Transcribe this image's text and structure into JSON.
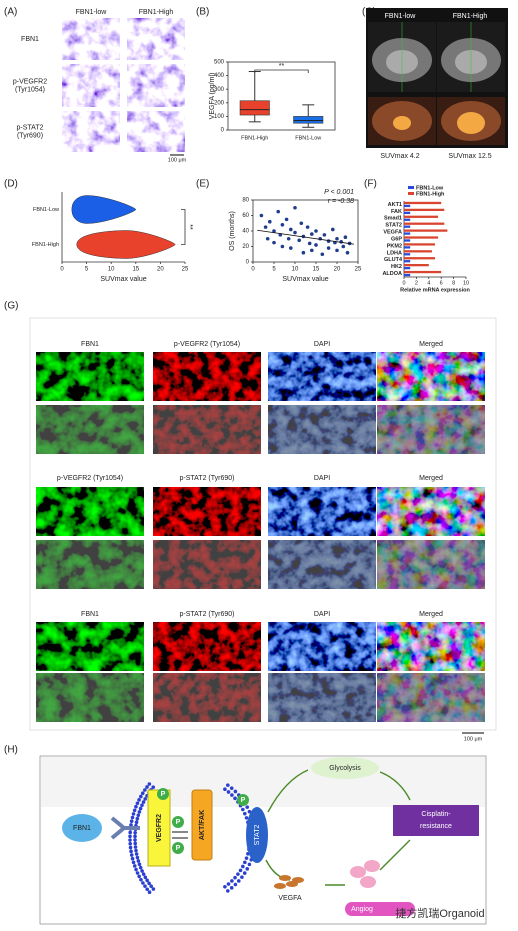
{
  "figure": {
    "panel_labels": [
      "(A)",
      "(B)",
      "(C)",
      "(D)",
      "(E)",
      "(F)",
      "(G)",
      "(H)"
    ],
    "A": {
      "columns": [
        "FBN1-low",
        "FBN1-High"
      ],
      "rows": [
        [
          "FBN1"
        ],
        [
          "p-VEGFR2",
          "(Tyr1054)"
        ],
        [
          "p-STAT2",
          "(Tyr690)"
        ]
      ],
      "scale": "100 μm"
    },
    "C": {
      "columns": [
        "FBN1-low",
        "FBN1-High"
      ],
      "captions": [
        "SUVmax 4.2",
        "SUVmax 12.5"
      ]
    },
    "G": {
      "groups": [
        [
          "FBN1",
          "p-VEGFR2 (Tyr1054)",
          "DAPI",
          "Merged"
        ],
        [
          "p-VEGFR2 (Tyr1054)",
          "p-STAT2 (Tyr690)",
          "DAPI",
          "Merged"
        ],
        [
          "FBN1",
          "p-STAT2 (Tyr690)",
          "DAPI",
          "Merged"
        ]
      ],
      "scale": "100 μm"
    },
    "H": {
      "fbn1": "FBN1",
      "vegfr2": "VEGFR2",
      "p": "P",
      "akt": "AKT/FAK",
      "stat2": "STAT2",
      "glycolysis": "Glycolysis",
      "cisplatin": [
        "Cisplatin-",
        "resistance"
      ],
      "vegfa": "VEGFA",
      "angio": "Angiog"
    },
    "watermark": "捷方凯瑞Organoid"
  },
  "chart_data": [
    {
      "type": "box",
      "y_label": "VEGFA (pg/ml)",
      "categories": [
        "FBN1-High",
        "FBN1-Low"
      ],
      "min": [
        60,
        20
      ],
      "q1": [
        110,
        50
      ],
      "median": [
        150,
        70
      ],
      "q3": [
        215,
        100
      ],
      "max": [
        430,
        185
      ],
      "colors": [
        "#e8412c",
        "#1a6ee6"
      ],
      "ylim": [
        0,
        500
      ],
      "yticks": [
        0,
        100,
        200,
        300,
        400,
        500
      ],
      "annotation": "**"
    },
    {
      "type": "violin",
      "x_label": "SUVmax value",
      "categories": [
        "FBN1-Low",
        "FBN1-High"
      ],
      "min": [
        2,
        3
      ],
      "peak": [
        5,
        13
      ],
      "max": [
        15,
        23
      ],
      "colors": [
        "#1a5fe6",
        "#e8412c"
      ],
      "xlim": [
        0,
        25
      ],
      "xticks": [
        0,
        5,
        10,
        15,
        20,
        25
      ],
      "annotation": "**"
    },
    {
      "type": "scatter",
      "x_label": "SUVmax value",
      "y_label": "OS (months)",
      "annotations": [
        "P < 0.001",
        "r = -0.38"
      ],
      "x": [
        2,
        3,
        3.5,
        4,
        5,
        5,
        6,
        6.5,
        7,
        7,
        8,
        8.5,
        9,
        9,
        10,
        10,
        11,
        11.5,
        12,
        12,
        13,
        13.5,
        14,
        14,
        15,
        15,
        16,
        16.5,
        17,
        18,
        18,
        19,
        19.5,
        20,
        20,
        21,
        21.5,
        22,
        22.5,
        23
      ],
      "y": [
        60,
        45,
        30,
        52,
        40,
        25,
        65,
        35,
        48,
        20,
        55,
        30,
        42,
        18,
        70,
        38,
        28,
        50,
        33,
        12,
        45,
        24,
        36,
        15,
        40,
        22,
        30,
        10,
        35,
        27,
        18,
        42,
        25,
        30,
        15,
        26,
        20,
        32,
        12,
        24
      ],
      "fit_x": [
        1,
        24
      ],
      "fit_y": [
        41,
        23
      ],
      "color": "#1f3d8c",
      "xlim": [
        0,
        25
      ],
      "ylim": [
        0,
        80
      ],
      "xticks": [
        0,
        5,
        10,
        15,
        20,
        25
      ],
      "yticks": [
        0,
        20,
        40,
        60,
        80
      ]
    },
    {
      "type": "hbar",
      "x_label": "Relative mRNA expression",
      "categories": [
        "AKT1",
        "FAK",
        "Smad1",
        "STAT2",
        "VEGFA",
        "G6P",
        "PKM2",
        "LDHA",
        "GLUT4",
        "HK2",
        "ALDOA"
      ],
      "series": [
        {
          "name": "FBN1-Low",
          "color": "#2a4bd7",
          "values": [
            1,
            1,
            1,
            1,
            1,
            1,
            1,
            1,
            1,
            1,
            1
          ]
        },
        {
          "name": "FBN1-High",
          "color": "#d9452f",
          "values": [
            6,
            6.5,
            5.5,
            6.5,
            7,
            5.5,
            5,
            4.5,
            5,
            4,
            6
          ]
        }
      ],
      "xlim": [
        0,
        10
      ],
      "xticks": [
        0,
        2,
        4,
        6,
        8,
        10
      ]
    }
  ]
}
